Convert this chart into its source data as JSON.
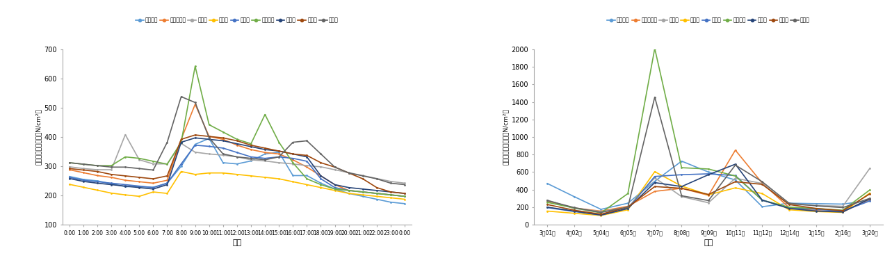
{
  "left": {
    "xlabel": "时间",
    "ylabel": "负离子浓度日均值（N/cm²）",
    "ylim": [
      100,
      700
    ],
    "yticks": [
      100,
      200,
      300,
      400,
      500,
      600,
      700
    ],
    "xticks": [
      "0:00",
      "1:00",
      "2:00",
      "3:00",
      "4:00",
      "5:00",
      "6:00",
      "7:00",
      "8:00",
      "9:00",
      "10:00",
      "11:00",
      "12:00",
      "13:00",
      "14:00",
      "15:00",
      "16:00",
      "17:00",
      "18:00",
      "19:00",
      "20:00",
      "21:00",
      "22:00",
      "23:00",
      "0:00"
    ],
    "series": [
      {
        "name": "公园大门",
        "color": "#5B9BD5",
        "data": [
          265,
          255,
          250,
          240,
          230,
          230,
          228,
          242,
          300,
          375,
          395,
          312,
          308,
          318,
          342,
          348,
          268,
          268,
          242,
          222,
          207,
          197,
          187,
          177,
          172
        ]
      },
      {
        "name": "大门茂密林",
        "color": "#ED7D31",
        "data": [
          288,
          278,
          268,
          262,
          252,
          247,
          242,
          252,
          392,
          512,
          402,
          392,
          372,
          357,
          347,
          342,
          322,
          297,
          267,
          237,
          217,
          212,
          207,
          202,
          197
        ]
      },
      {
        "name": "荷花池",
        "color": "#A5A5A5",
        "data": [
          298,
          292,
          288,
          288,
          408,
          322,
          308,
          308,
          378,
          348,
          342,
          338,
          332,
          322,
          318,
          312,
          308,
          302,
          298,
          288,
          278,
          268,
          258,
          248,
          242
        ]
      },
      {
        "name": "乔灣草",
        "color": "#FFC000",
        "data": [
          238,
          228,
          218,
          208,
          202,
          197,
          212,
          207,
          282,
          272,
          277,
          277,
          272,
          267,
          262,
          257,
          247,
          237,
          227,
          217,
          207,
          202,
          197,
          192,
          187
        ]
      },
      {
        "name": "小广场",
        "color": "#4472C4",
        "data": [
          262,
          252,
          247,
          242,
          237,
          232,
          227,
          242,
          308,
          372,
          368,
          362,
          347,
          332,
          327,
          332,
          327,
          317,
          257,
          227,
          217,
          212,
          207,
          202,
          197
        ]
      },
      {
        "name": "音乐广场",
        "color": "#70AD47",
        "data": [
          312,
          307,
          302,
          302,
          332,
          327,
          317,
          307,
          382,
          642,
          442,
          417,
          392,
          377,
          477,
          382,
          312,
          257,
          237,
          222,
          217,
          212,
          207,
          202,
          197
        ]
      },
      {
        "name": "八角亭",
        "color": "#264478",
        "data": [
          258,
          248,
          242,
          237,
          232,
          227,
          222,
          237,
          382,
          397,
          392,
          387,
          377,
          367,
          357,
          352,
          342,
          332,
          267,
          237,
          227,
          222,
          217,
          212,
          207
        ]
      },
      {
        "name": "水杉林",
        "color": "#9E480E",
        "data": [
          292,
          287,
          282,
          272,
          267,
          262,
          257,
          267,
          392,
          407,
          402,
          397,
          387,
          372,
          362,
          352,
          342,
          337,
          312,
          297,
          277,
          257,
          227,
          212,
          207
        ]
      },
      {
        "name": "大草坪",
        "color": "#646464",
        "data": [
          312,
          307,
          302,
          297,
          297,
          292,
          287,
          382,
          538,
          518,
          397,
          342,
          332,
          327,
          322,
          332,
          382,
          387,
          342,
          297,
          277,
          267,
          257,
          242,
          237
        ]
      }
    ]
  },
  "right": {
    "xlabel": "时间",
    "ylabel": "负离子浓度日均值（N/cm²）",
    "ylim": [
      0,
      2000
    ],
    "yticks": [
      0,
      200,
      400,
      600,
      800,
      1000,
      1200,
      1400,
      1600,
      1800,
      2000
    ],
    "xticks": [
      "3月01日",
      "4月02日",
      "5月04日",
      "6月05日",
      "7月07日",
      "8月08日",
      "9月09日",
      "10月11日",
      "11月12日",
      "12月14日",
      "1月15日",
      "2月16日",
      "3月20日"
    ],
    "series": [
      {
        "name": "公园大门",
        "color": "#5B9BD5",
        "data": [
          470,
          320,
          175,
          245,
          495,
          725,
          600,
          510,
          205,
          245,
          240,
          235,
          275
        ]
      },
      {
        "name": "大门茂密林",
        "color": "#ED7D31",
        "data": [
          270,
          190,
          155,
          210,
          380,
          415,
          335,
          850,
          475,
          195,
          160,
          145,
          290
        ]
      },
      {
        "name": "荷花池",
        "color": "#A5A5A5",
        "data": [
          280,
          185,
          150,
          195,
          535,
          320,
          250,
          530,
          470,
          230,
          220,
          210,
          640
        ]
      },
      {
        "name": "乔灣草",
        "color": "#FFC000",
        "data": [
          155,
          130,
          105,
          170,
          605,
          440,
          340,
          420,
          355,
          170,
          150,
          140,
          360
        ]
      },
      {
        "name": "小广场",
        "color": "#4472C4",
        "data": [
          195,
          150,
          110,
          185,
          550,
          570,
          580,
          560,
          280,
          195,
          175,
          155,
          270
        ]
      },
      {
        "name": "音乐广场",
        "color": "#70AD47",
        "data": [
          255,
          190,
          135,
          355,
          2010,
          650,
          635,
          555,
          280,
          200,
          185,
          165,
          395
        ]
      },
      {
        "name": "八角亭",
        "color": "#264478",
        "data": [
          200,
          155,
          110,
          185,
          480,
          435,
          570,
          690,
          280,
          185,
          155,
          145,
          295
        ]
      },
      {
        "name": "水杉林",
        "color": "#9E480E",
        "data": [
          230,
          165,
          120,
          200,
          435,
          415,
          345,
          490,
          460,
          230,
          185,
          160,
          350
        ]
      },
      {
        "name": "大草坪",
        "color": "#646464",
        "data": [
          275,
          195,
          140,
          200,
          1455,
          330,
          275,
          680,
          490,
          245,
          215,
          195,
          300
        ]
      }
    ]
  }
}
